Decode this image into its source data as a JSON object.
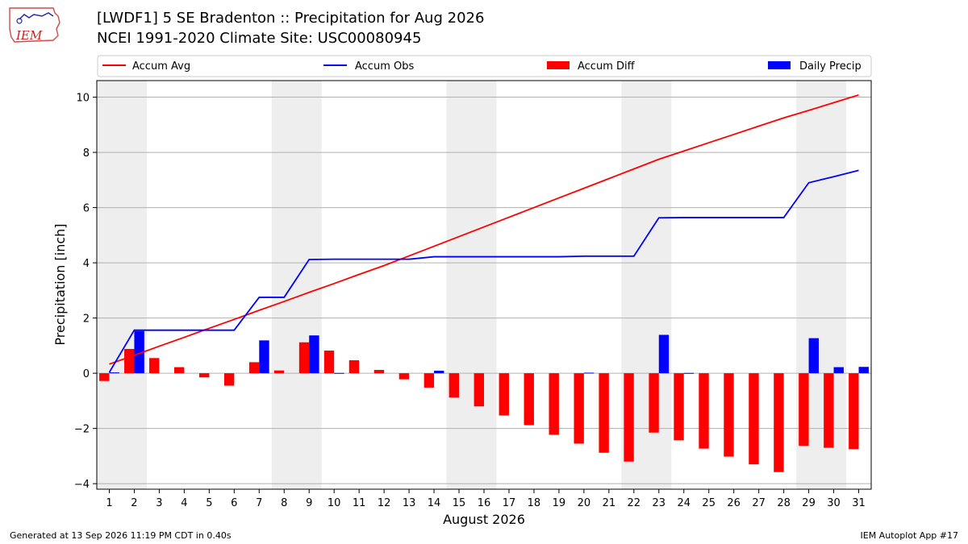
{
  "header": {
    "title_line1": "[LWDF1] 5 SE Bradenton :: Precipitation for Aug 2026",
    "title_line2": "NCEI 1991-2020 Climate Site: USC00080945"
  },
  "logo": {
    "text": "IEM"
  },
  "footer": {
    "left": "Generated at 13 Sep 2026 11:19 PM CDT in 0.40s",
    "right": "IEM Autoplot App #17"
  },
  "colors": {
    "avg": "#ff0000",
    "obs": "#0000ff",
    "diff": "#ff0000",
    "daily": "#0000ff",
    "weekend": "#eeeeee",
    "grid": "#b0b0b0"
  },
  "chart_data": {
    "type": "bar",
    "xlabel": "August 2026",
    "ylabel": "Precipitation [inch]",
    "ylim": [
      -4.2,
      10.6
    ],
    "xlim": [
      0.5,
      31.5
    ],
    "yticks": [
      -4,
      -2,
      0,
      2,
      4,
      6,
      8,
      10
    ],
    "ytick_labels": [
      "−4",
      "−2",
      "0",
      "2",
      "4",
      "6",
      "8",
      "10"
    ],
    "days": [
      1,
      2,
      3,
      4,
      5,
      6,
      7,
      8,
      9,
      10,
      11,
      12,
      13,
      14,
      15,
      16,
      17,
      18,
      19,
      20,
      21,
      22,
      23,
      24,
      25,
      26,
      27,
      28,
      29,
      30,
      31
    ],
    "grid": "horizontal",
    "legend_position": "top",
    "weekend_spans": [
      [
        0.5,
        2.5
      ],
      [
        7.5,
        9.5
      ],
      [
        14.5,
        16.5
      ],
      [
        21.5,
        23.5
      ],
      [
        28.5,
        30.5
      ]
    ],
    "series": [
      {
        "name": "Accum Avg",
        "kind": "line",
        "values": [
          0.33,
          0.65,
          0.98,
          1.3,
          1.63,
          1.95,
          2.28,
          2.6,
          2.93,
          3.25,
          3.58,
          3.9,
          4.25,
          4.6,
          4.95,
          5.3,
          5.65,
          6.0,
          6.35,
          6.7,
          7.05,
          7.4,
          7.75,
          8.05,
          8.35,
          8.65,
          8.95,
          9.25,
          9.52,
          9.8,
          10.08
        ]
      },
      {
        "name": "Accum Obs",
        "kind": "line",
        "values": [
          0.03,
          1.56,
          1.56,
          1.56,
          1.56,
          1.56,
          2.75,
          2.75,
          4.12,
          4.13,
          4.13,
          4.13,
          4.13,
          4.22,
          4.22,
          4.22,
          4.22,
          4.22,
          4.22,
          4.24,
          4.24,
          4.24,
          5.63,
          5.64,
          5.64,
          5.64,
          5.64,
          5.64,
          6.9,
          7.12,
          7.35
        ]
      },
      {
        "name": "Accum Diff",
        "kind": "bar",
        "values": [
          -0.28,
          0.88,
          0.55,
          0.22,
          -0.15,
          -0.45,
          0.4,
          0.1,
          1.12,
          0.82,
          0.47,
          0.12,
          -0.22,
          -0.52,
          -0.88,
          -1.2,
          -1.53,
          -1.88,
          -2.23,
          -2.55,
          -2.88,
          -3.2,
          -2.15,
          -2.43,
          -2.73,
          -3.02,
          -3.3,
          -3.58,
          -2.63,
          -2.7,
          -2.75
        ]
      },
      {
        "name": "Daily Precip",
        "kind": "bar",
        "values": [
          0.03,
          1.53,
          0,
          0,
          0,
          0,
          1.19,
          0,
          1.37,
          0.01,
          0,
          0,
          0,
          0.09,
          0,
          0,
          0,
          0,
          0,
          0.02,
          0,
          0,
          1.39,
          0.01,
          0,
          0,
          0,
          0,
          1.27,
          0.22,
          0.23
        ]
      }
    ]
  }
}
